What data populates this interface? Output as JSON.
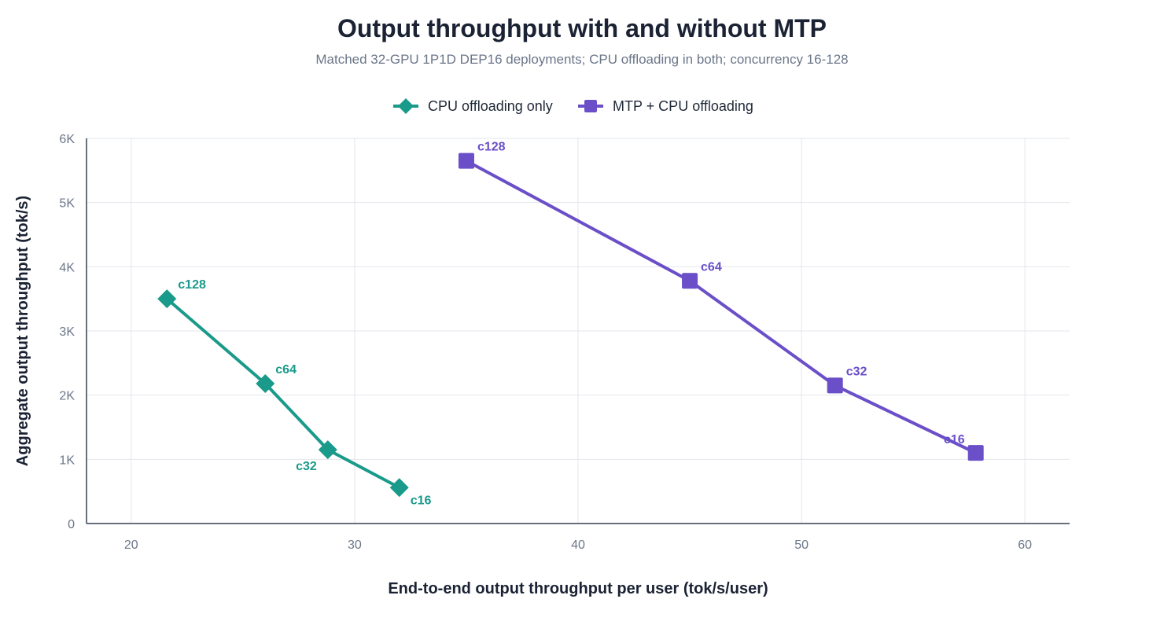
{
  "chart_data": {
    "type": "line",
    "title": "Output throughput with and without MTP",
    "subtitle": "Matched 32-GPU 1P1D DEP16 deployments; CPU offloading in both; concurrency 16-128",
    "xlabel": "End-to-end output throughput per user (tok/s/user)",
    "ylabel": "Aggregate output throughput (tok/s)",
    "xlim": [
      18,
      62
    ],
    "ylim": [
      0,
      6000
    ],
    "x_ticks": [
      20,
      30,
      40,
      50,
      60
    ],
    "y_ticks": [
      0,
      1000,
      2000,
      3000,
      4000,
      5000,
      6000
    ],
    "y_tick_labels": [
      "0",
      "1K",
      "2K",
      "3K",
      "4K",
      "5K",
      "6K"
    ],
    "grid": true,
    "legend_position": "top-center",
    "series": [
      {
        "name": "CPU offloading only",
        "color": "#1a9a8a",
        "marker": "diamond",
        "points": [
          {
            "label": "c128",
            "x": 21.6,
            "y": 3500
          },
          {
            "label": "c64",
            "x": 26.0,
            "y": 2180
          },
          {
            "label": "c32",
            "x": 28.8,
            "y": 1150
          },
          {
            "label": "c16",
            "x": 32.0,
            "y": 560
          }
        ]
      },
      {
        "name": "MTP + CPU offloading",
        "color": "#6a4fc8",
        "marker": "square",
        "points": [
          {
            "label": "c128",
            "x": 35.0,
            "y": 5650
          },
          {
            "label": "c64",
            "x": 45.0,
            "y": 3780
          },
          {
            "label": "c32",
            "x": 51.5,
            "y": 2150
          },
          {
            "label": "c16",
            "x": 57.8,
            "y": 1100
          }
        ]
      }
    ]
  }
}
